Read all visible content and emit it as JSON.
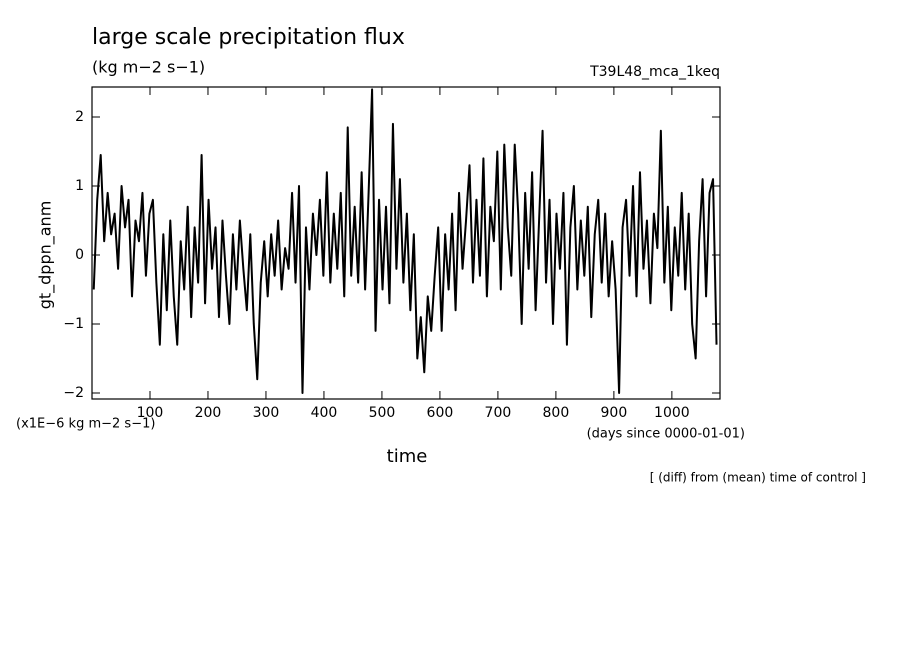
{
  "chart_data": {
    "type": "line",
    "title": "large scale precipitation flux",
    "subtitle": "(kg m−2 s−1)",
    "run_label": "T39L48_mca_1keq",
    "y_label": "gt_dppn_anm",
    "x_label": "time",
    "y_unit": "(x1E−6 kg m−2 s−1)",
    "x_unit": "(days since 0000-01-01)",
    "note": "[ (diff) from (mean) time of control ]",
    "color": "#000000",
    "xlim": [
      0,
      1083
    ],
    "ylim": [
      -2.087,
      2.435
    ],
    "xticks": [
      100,
      200,
      300,
      400,
      500,
      600,
      700,
      800,
      900,
      1000
    ],
    "yticks": [
      {
        "value": -2,
        "label": "−2"
      },
      {
        "value": -1,
        "label": "−1"
      },
      0,
      1,
      2
    ],
    "x": [
      3,
      9,
      15,
      21,
      27,
      33,
      39,
      45,
      51,
      57,
      63,
      69,
      75,
      81,
      87,
      93,
      99,
      105,
      111,
      117,
      123,
      129,
      135,
      141,
      147,
      153,
      159,
      165,
      171,
      177,
      183,
      189,
      195,
      201,
      207,
      213,
      219,
      225,
      231,
      237,
      243,
      249,
      255,
      261,
      267,
      273,
      279,
      285,
      291,
      297,
      303,
      309,
      315,
      321,
      327,
      333,
      339,
      345,
      351,
      357,
      363,
      369,
      375,
      381,
      387,
      393,
      399,
      405,
      411,
      417,
      423,
      429,
      435,
      441,
      447,
      453,
      459,
      465,
      471,
      477,
      483,
      489,
      495,
      501,
      507,
      513,
      519,
      525,
      531,
      537,
      543,
      549,
      555,
      561,
      567,
      573,
      579,
      585,
      591,
      597,
      603,
      609,
      615,
      621,
      627,
      633,
      639,
      645,
      651,
      657,
      663,
      669,
      675,
      681,
      687,
      693,
      699,
      705,
      711,
      717,
      723,
      729,
      735,
      741,
      747,
      753,
      759,
      765,
      771,
      777,
      783,
      789,
      795,
      801,
      807,
      813,
      819,
      825,
      831,
      837,
      843,
      849,
      855,
      861,
      867,
      873,
      879,
      885,
      891,
      897,
      903,
      909,
      915,
      921,
      927,
      933,
      939,
      945,
      951,
      957,
      963,
      969,
      975,
      981,
      987,
      993,
      999,
      1005,
      1011,
      1017,
      1023,
      1029,
      1035,
      1041,
      1047,
      1053,
      1059,
      1065,
      1071,
      1077
    ],
    "values": [
      -0.5,
      0.8,
      1.45,
      0.2,
      0.9,
      0.3,
      0.6,
      -0.2,
      1.0,
      0.4,
      0.8,
      -0.6,
      0.5,
      0.2,
      0.9,
      -0.3,
      0.6,
      0.8,
      -0.4,
      -1.3,
      0.3,
      -0.8,
      0.5,
      -0.6,
      -1.3,
      0.2,
      -0.5,
      0.7,
      -0.9,
      0.4,
      -0.4,
      1.45,
      -0.7,
      0.8,
      -0.2,
      0.4,
      -0.9,
      0.5,
      -0.3,
      -1.0,
      0.3,
      -0.5,
      0.5,
      -0.2,
      -0.8,
      0.3,
      -1.0,
      -1.8,
      -0.4,
      0.2,
      -0.6,
      0.3,
      -0.3,
      0.5,
      -0.5,
      0.1,
      -0.2,
      0.9,
      -0.4,
      1.0,
      -2.0,
      0.4,
      -0.5,
      0.6,
      0.0,
      0.8,
      -0.3,
      1.2,
      -0.4,
      0.6,
      -0.2,
      0.9,
      -0.6,
      1.85,
      -0.3,
      0.7,
      -0.4,
      1.2,
      -0.5,
      0.9,
      2.4,
      -1.1,
      0.8,
      -0.5,
      0.7,
      -0.7,
      1.9,
      -0.2,
      1.1,
      -0.4,
      0.6,
      -0.8,
      0.3,
      -1.5,
      -0.9,
      -1.7,
      -0.6,
      -1.1,
      -0.3,
      0.4,
      -1.1,
      0.3,
      -0.5,
      0.6,
      -0.8,
      0.9,
      -0.2,
      0.5,
      1.3,
      -0.4,
      0.8,
      -0.3,
      1.4,
      -0.6,
      0.7,
      0.2,
      1.5,
      -0.5,
      1.6,
      0.4,
      -0.3,
      1.6,
      0.6,
      -1.0,
      0.9,
      -0.2,
      1.2,
      -0.8,
      0.5,
      1.8,
      -0.4,
      0.8,
      -1.0,
      0.6,
      -0.2,
      0.9,
      -1.3,
      0.4,
      1.0,
      -0.5,
      0.5,
      -0.3,
      0.7,
      -0.9,
      0.3,
      0.8,
      -0.4,
      0.6,
      -0.6,
      0.2,
      -0.5,
      -2.0,
      0.4,
      0.8,
      -0.3,
      1.0,
      -0.6,
      1.2,
      -0.2,
      0.5,
      -0.7,
      0.6,
      0.1,
      1.8,
      -0.4,
      0.7,
      -0.8,
      0.4,
      -0.3,
      0.9,
      -0.5,
      0.6,
      -1.0,
      -1.5,
      0.2,
      1.1,
      -0.6,
      0.9,
      1.1,
      -1.3
    ]
  }
}
